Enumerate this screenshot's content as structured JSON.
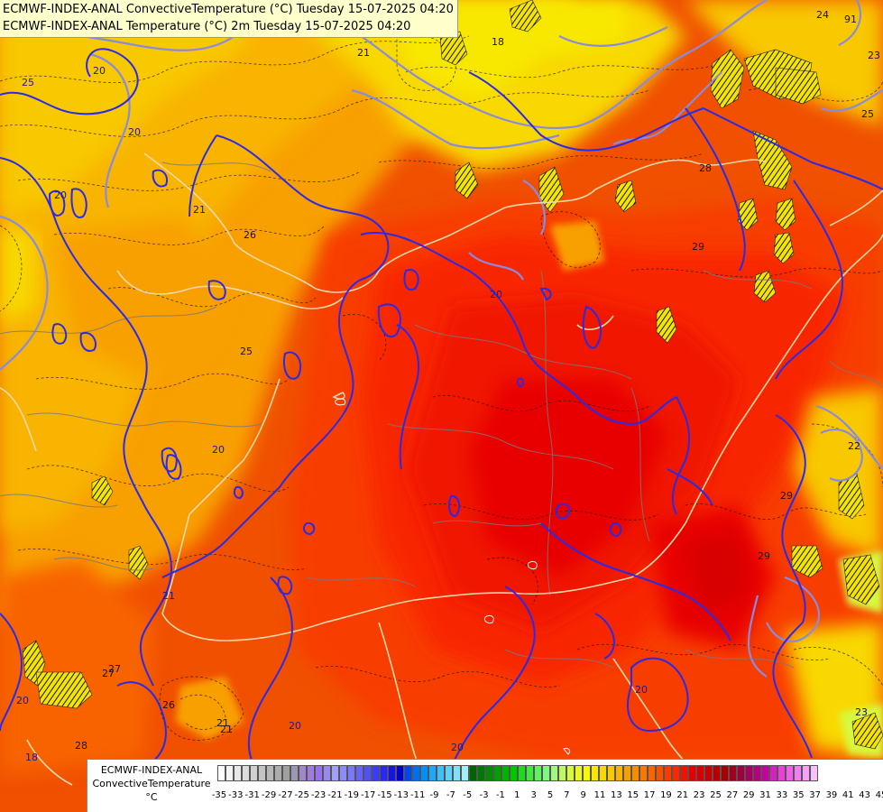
{
  "title_lines": [
    "ECMWF-INDEX-ANAL ConvectiveTemperature (°C) Tuesday 15-07-2025 04:20",
    "ECMWF-INDEX-ANAL Temperature (°C) 2m Tuesday 15-07-2025 04:20"
  ],
  "legend": {
    "label_lines": [
      "ECMWF-INDEX-ANAL",
      "ConvectiveTemperature",
      "°C"
    ],
    "ticks": [
      "-35",
      "-33",
      "-31",
      "-29",
      "-27",
      "-25",
      "-23",
      "-21",
      "-19",
      "-17",
      "-15",
      "-13",
      "-11",
      "-9",
      "-7",
      "-5",
      "-3",
      "-1",
      "1",
      "3",
      "5",
      "7",
      "9",
      "11",
      "13",
      "15",
      "17",
      "19",
      "21",
      "23",
      "25",
      "27",
      "29",
      "31",
      "33",
      "35",
      "37",
      "39",
      "41",
      "43",
      "45"
    ],
    "colors": [
      "#ffffff",
      "#f4f4f4",
      "#e8e8e8",
      "#dcdcdc",
      "#d0d0d0",
      "#c4c4c4",
      "#b8b8b8",
      "#acacac",
      "#a0a0a0",
      "#9898b0",
      "#a088c8",
      "#a07ce0",
      "#9870f0",
      "#9888f0",
      "#a0a0f8",
      "#8c8cf8",
      "#7878f8",
      "#6464f8",
      "#5050f8",
      "#3c3cf8",
      "#2828f0",
      "#1414e8",
      "#0000d8",
      "#0048e8",
      "#0070f0",
      "#0090f8",
      "#20a8f8",
      "#40c0f8",
      "#60d0f8",
      "#80e0f8",
      "#a0f0f8",
      "#006400",
      "#007800",
      "#008c00",
      "#00a000",
      "#00b400",
      "#00c800",
      "#20d820",
      "#40e840",
      "#60f060",
      "#80f880",
      "#a0f880",
      "#c0f860",
      "#d8f840",
      "#e8f820",
      "#f8f800",
      "#f8e800",
      "#f8d800",
      "#f8c800",
      "#f8b400",
      "#f8a000",
      "#f88c00",
      "#f87800",
      "#f86400",
      "#f85000",
      "#f83c00",
      "#f82800",
      "#f01400",
      "#e80000",
      "#d80000",
      "#c80000",
      "#b80000",
      "#a80000",
      "#a0001c",
      "#a00040",
      "#a80060",
      "#b80080",
      "#c800a0",
      "#d820c0",
      "#e840d8",
      "#f060e8",
      "#f080f0",
      "#f8a0f8",
      "#f8c0f8"
    ]
  },
  "contour_labels": [
    {
      "id": "c1",
      "text": "25"
    },
    {
      "id": "c2",
      "text": "20"
    },
    {
      "id": "c3",
      "text": "20"
    },
    {
      "id": "c4",
      "text": "21"
    },
    {
      "id": "c5",
      "text": "26"
    },
    {
      "id": "c6",
      "text": "25"
    },
    {
      "id": "c7",
      "text": "20"
    },
    {
      "id": "c8",
      "text": "20"
    },
    {
      "id": "c9",
      "text": "24"
    },
    {
      "id": "c10",
      "text": "23"
    },
    {
      "id": "c11",
      "text": "25"
    },
    {
      "id": "c12",
      "text": "28"
    },
    {
      "id": "c13",
      "text": "29"
    },
    {
      "id": "c14",
      "text": "29"
    },
    {
      "id": "c15",
      "text": "22"
    },
    {
      "id": "c16",
      "text": "27"
    },
    {
      "id": "c17",
      "text": "26"
    },
    {
      "id": "c18",
      "text": "21"
    },
    {
      "id": "c19",
      "text": "20"
    },
    {
      "id": "c20",
      "text": "18"
    },
    {
      "id": "c21",
      "text": "20"
    },
    {
      "id": "c22",
      "text": "21"
    },
    {
      "id": "c23",
      "text": "20"
    },
    {
      "id": "c24",
      "text": "20"
    },
    {
      "id": "c25",
      "text": "23"
    },
    {
      "id": "c26",
      "text": "28"
    },
    {
      "id": "c27",
      "text": "20"
    },
    {
      "id": "c28",
      "text": "21"
    },
    {
      "id": "c29",
      "text": "18"
    },
    {
      "id": "c30",
      "text": "91"
    },
    {
      "id": "c31",
      "text": "21"
    },
    {
      "id": "c32",
      "text": "27"
    },
    {
      "id": "c33",
      "text": "29"
    }
  ],
  "colors": {
    "temp_contour": "#2a2ae8",
    "convective_contour": "#8080e0",
    "country_border": "#f0d8a8",
    "admin_border": "#777777",
    "title_bg": "#ffffcc"
  }
}
